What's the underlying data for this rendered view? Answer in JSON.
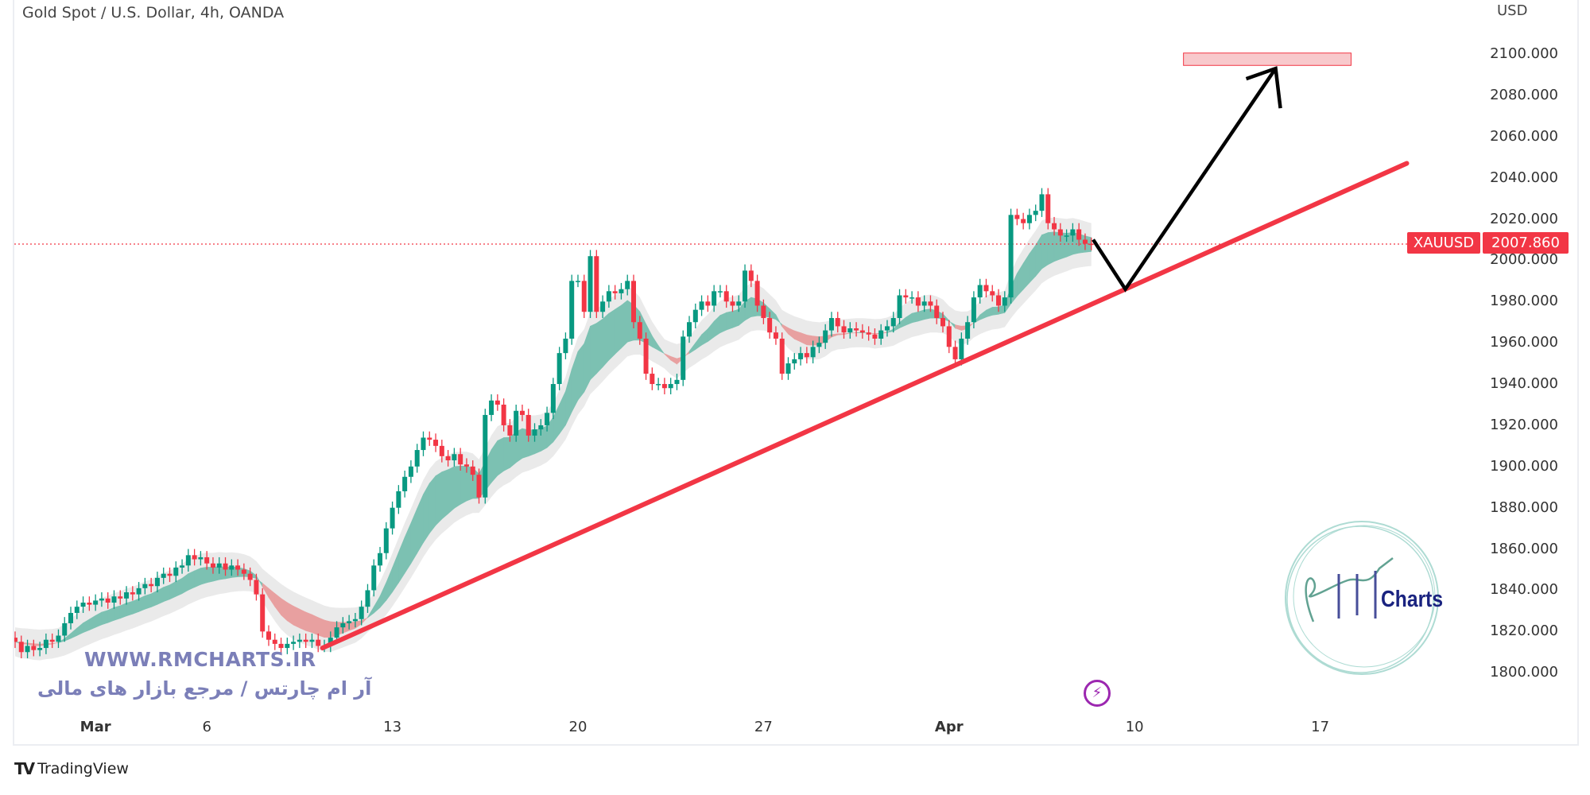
{
  "header": {
    "title": "Gold Spot / U.S. Dollar, 4h, OANDA",
    "currency": "USD"
  },
  "price_tag": {
    "symbol": "XAUUSD",
    "value": "2007.860",
    "color": "#f23645"
  },
  "watermark": {
    "url": "WWW.RMCHARTS.IR",
    "tagline": "آر ام چارتس / مرجع بازار های مالی",
    "logo_text": "Charts"
  },
  "footer": {
    "brand": "TradingView"
  },
  "icons": {
    "alert": "lightning-icon",
    "brand": "tradingview-logo-icon"
  },
  "chart_data": {
    "type": "candlestick",
    "symbol": "XAUUSD",
    "interval": "4h",
    "ylim": [
      1780,
      2120
    ],
    "y_ticks": [
      "2100.000",
      "2080.000",
      "2060.000",
      "2040.000",
      "2020.000",
      "2000.000",
      "1980.000",
      "1960.000",
      "1940.000",
      "1920.000",
      "1900.000",
      "1880.000",
      "1860.000",
      "1840.000",
      "1820.000",
      "1800.000"
    ],
    "x_ticks": [
      "Mar",
      "6",
      "13",
      "20",
      "27",
      "Apr",
      "10",
      "17"
    ],
    "x_ticks_bold": [
      "Mar",
      "Apr"
    ],
    "last_price": 2007.86,
    "colors": {
      "up": "#089981",
      "down": "#f23645",
      "ribbon_up": "#7cc1b2",
      "ribbon_down": "#e8a0a0",
      "cloud": "#e3e3e3"
    },
    "close": [
      1815,
      1810,
      1813,
      1811,
      1812,
      1816,
      1815,
      1818,
      1824,
      1829,
      1832,
      1834,
      1833,
      1835,
      1836,
      1834,
      1837,
      1836,
      1839,
      1838,
      1841,
      1843,
      1842,
      1846,
      1848,
      1847,
      1851,
      1852,
      1857,
      1855,
      1856,
      1853,
      1851,
      1853,
      1850,
      1852,
      1850,
      1848,
      1845,
      1838,
      1820,
      1816,
      1814,
      1812,
      1814,
      1815,
      1816,
      1815,
      1816,
      1813,
      1813,
      1817,
      1822,
      1824,
      1825,
      1826,
      1832,
      1840,
      1852,
      1858,
      1870,
      1880,
      1888,
      1895,
      1900,
      1908,
      1914,
      1913,
      1910,
      1905,
      1903,
      1906,
      1901,
      1900,
      1896,
      1885,
      1925,
      1932,
      1930,
      1920,
      1915,
      1927,
      1925,
      1915,
      1918,
      1920,
      1926,
      1940,
      1955,
      1962,
      1990,
      1990,
      1975,
      2002,
      1975,
      1980,
      1985,
      1984,
      1986,
      1990,
      1970,
      1962,
      1945,
      1940,
      1940,
      1938,
      1940,
      1942,
      1963,
      1970,
      1976,
      1980,
      1978,
      1985,
      1985,
      1980,
      1978,
      1980,
      1995,
      1990,
      1978,
      1972,
      1965,
      1962,
      1945,
      1950,
      1952,
      1955,
      1953,
      1958,
      1960,
      1966,
      1972,
      1968,
      1965,
      1967,
      1966,
      1965,
      1964,
      1962,
      1966,
      1968,
      1972,
      1983,
      1982,
      1982,
      1978,
      1980,
      1978,
      1972,
      1968,
      1958,
      1952,
      1962,
      1970,
      1982,
      1988,
      1985,
      1983,
      1978,
      1982,
      2022,
      2020,
      2018,
      2022,
      2024,
      2032,
      2018,
      2015,
      2012,
      2012,
      2015,
      2010,
      2008,
      2007.86
    ],
    "drawings": {
      "trendline": {
        "color": "#f23645",
        "from_price": 1812,
        "to_price": 2047
      },
      "projection_arrow": {
        "color": "#000000",
        "prices": [
          2010,
          1986,
          2093
        ]
      },
      "target_zone": {
        "color": "#f8c9cc",
        "border": "#f23645",
        "top": 2100.5,
        "bottom": 2094.5
      }
    }
  }
}
